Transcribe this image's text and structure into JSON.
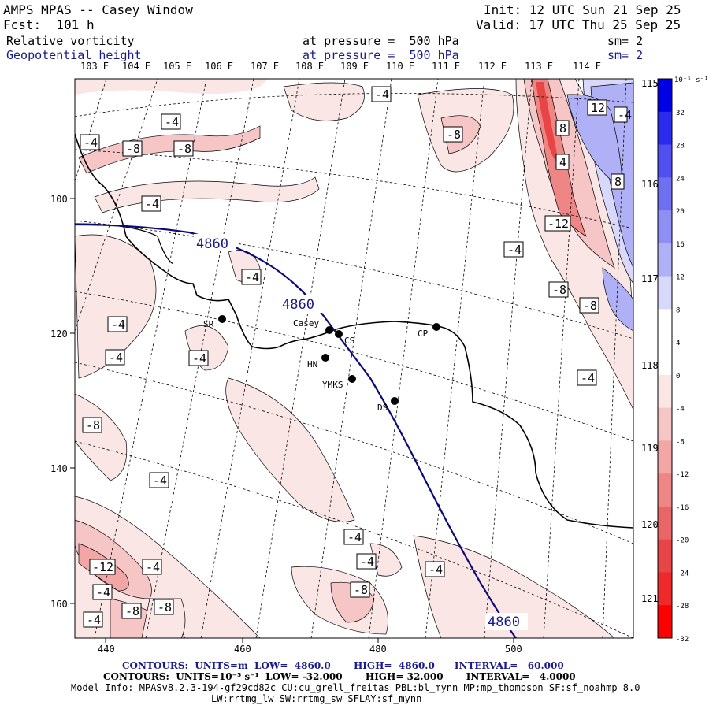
{
  "header": {
    "title": "AMPS MPAS -- Casey Window",
    "forecast": "Fcst:  101 h",
    "init": "Init: 12 UTC Sun 21 Sep 25",
    "valid": "Valid: 17 UTC Thu 25 Sep 25",
    "field1_name": "Relative vorticity",
    "field1_level": "at pressure =  500 hPa",
    "field1_sm": "sm= 2",
    "field2_name": "Geopotential height",
    "field2_level": "at pressure =  500 hPa",
    "field2_sm": "sm= 2"
  },
  "map": {
    "top_longitudes": [
      "103 E",
      "104 E",
      "105 E",
      "106 E",
      "107 E",
      "108 E",
      "109 E",
      "110 E",
      "111 E",
      "112 E",
      "113 E",
      "114 E"
    ],
    "right_longitudes": [
      "115 E",
      "116 E",
      "117 E",
      "118 E",
      "119 E",
      "120 E",
      "121 E"
    ],
    "x_ticks": [
      "440",
      "460",
      "480",
      "500"
    ],
    "y_ticks": [
      "100",
      "120",
      "140",
      "160"
    ],
    "stations": [
      {
        "label": "SR"
      },
      {
        "label": "Casey"
      },
      {
        "label": "CS"
      },
      {
        "label": "HN"
      },
      {
        "label": "YMKS"
      },
      {
        "label": "DS"
      },
      {
        "label": "CP"
      }
    ],
    "height_labels": [
      "4860",
      "4860",
      "4860"
    ],
    "vort_labels": [
      "-4",
      "-4",
      "-4",
      "-8",
      "-8",
      "-4",
      "-8",
      "-4",
      "-4",
      "-4",
      "-12",
      "8",
      "4",
      "8",
      "12",
      "-4",
      "-8",
      "-8",
      "-4",
      "-4",
      "-4",
      "-8",
      "-4",
      "-4",
      "-8",
      "-4",
      "-12",
      "-4",
      "-4",
      "-8",
      "-8",
      "-4",
      "-4",
      "-8"
    ]
  },
  "colorbar": {
    "unit": "10⁻⁵ s⁻¹",
    "labels": [
      "32",
      "28",
      "24",
      "20",
      "16",
      "12",
      "8",
      "4",
      "0",
      "-4",
      "-8",
      "-12",
      "-16",
      "-20",
      "-24",
      "-28",
      "-32"
    ],
    "colors": [
      "#0000e6",
      "#2b2bee",
      "#5050f0",
      "#6f6ff2",
      "#8e8ef4",
      "#b0b0f7",
      "#d8d8fb",
      "#ffffff",
      "#ffffff",
      "#fbe6e6",
      "#f6c6c6",
      "#f2a6a6",
      "#ee8686",
      "#ea6666",
      "#e84646",
      "#f02a2a",
      "#ff0000"
    ]
  },
  "footer": {
    "line1": "CONTOURS:  UNITS=m  LOW=  4860.0       HIGH=  4860.0      INTERVAL=   60.000",
    "line2": "CONTOURS:  UNITS=10⁻⁵ s⁻¹  LOW= -32.000       HIGH= 32.000       INTERVAL=   4.0000",
    "line3": "Model Info: MPASv8.2.3-194-gf29cd82c CU:cu_grell_freitas PBL:bl_mynn MP:mp_thompson SF:sf_noahmp 8.0",
    "line4": "LW:rrtmg_lw SW:rrtmg_sw SFLAY:sf_mynn"
  }
}
